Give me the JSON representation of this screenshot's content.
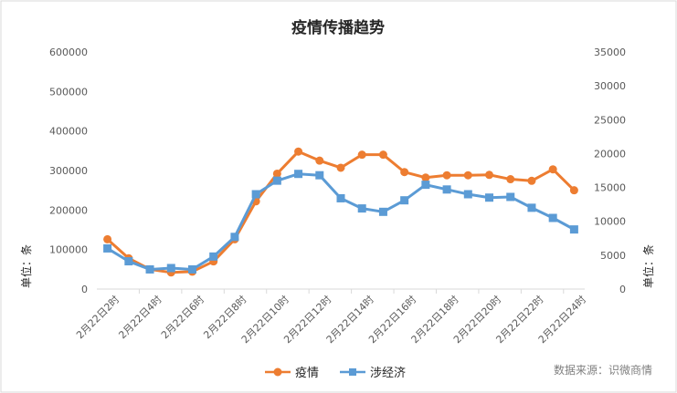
{
  "chart_data": {
    "type": "line",
    "title": "疫情传播趋势",
    "categories": [
      "2月22日2时",
      "",
      "2月22日4时",
      "",
      "2月22日6时",
      "",
      "2月22日8时",
      "",
      "2月22日10时",
      "",
      "2月22日12时",
      "",
      "2月22日14时",
      "",
      "2月22日16时",
      "",
      "2月22日18时",
      "",
      "2月22日20时",
      "",
      "2月22日22时",
      "",
      "2月22日24时"
    ],
    "series": [
      {
        "name": "疫情",
        "axis": "left",
        "color": "#ED7D31",
        "marker": "circle",
        "values": [
          126000,
          78000,
          50000,
          42000,
          44000,
          70000,
          126000,
          222000,
          292000,
          348000,
          325000,
          307000,
          340000,
          340000,
          296000,
          282000,
          288000,
          288000,
          289000,
          278000,
          274000,
          303000,
          250000
        ]
      },
      {
        "name": "涉经济",
        "axis": "right",
        "color": "#5B9BD5",
        "marker": "square",
        "values": [
          6000,
          4100,
          2900,
          3100,
          2900,
          4800,
          7700,
          14000,
          16000,
          17000,
          16800,
          13400,
          11900,
          11400,
          13100,
          15400,
          14700,
          14000,
          13500,
          13600,
          12000,
          10500,
          8800
        ]
      }
    ],
    "y_left": {
      "ylim": [
        0,
        600000
      ],
      "ticks": [
        "0",
        "100000",
        "200000",
        "300000",
        "400000",
        "500000",
        "600000"
      ],
      "label": "单位：条"
    },
    "y_right": {
      "ylim": [
        0,
        35000
      ],
      "ticks": [
        "0",
        "5000",
        "10000",
        "15000",
        "20000",
        "25000",
        "30000",
        "35000"
      ],
      "label": "单位：条"
    },
    "legend_position": "bottom",
    "grid": false,
    "source_note": "数据来源：识微商情"
  }
}
